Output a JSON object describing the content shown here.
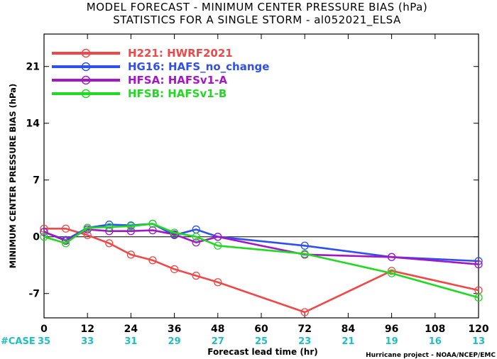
{
  "chart_data": {
    "type": "line",
    "title": "MODEL FORECAST - MINIMUM CENTER PRESSURE BIAS (hPa)",
    "subtitle": "STATISTICS FOR A SINGLE STORM - al052021_ELSA",
    "xlabel": "Forecast lead time (hr)",
    "ylabel": "MINIMUM CENTER PRESSURE BIAS (hPa)",
    "xlim": [
      0,
      120
    ],
    "ylim": [
      -10,
      25
    ],
    "x_ticks": [
      0,
      12,
      24,
      36,
      48,
      60,
      72,
      84,
      96,
      108,
      120
    ],
    "y_ticks": [
      -7,
      0,
      7,
      14,
      21
    ],
    "grid": false,
    "legend_position": "top-left",
    "case_label": "#CASE",
    "case_counts": [
      "35",
      "33",
      "31",
      "29",
      "27",
      "25",
      "23",
      "21",
      "19",
      "16",
      "13"
    ],
    "credit": "Hurricane project - NOAA/NCEP/EMC",
    "series": [
      {
        "name": "H221: HWRF2021",
        "color": "#f04848",
        "x": [
          0,
          6,
          12,
          18,
          24,
          30,
          36,
          42,
          48,
          72,
          96,
          120
        ],
        "y": [
          1.0,
          1.0,
          0.2,
          -0.8,
          -2.2,
          -2.9,
          -4.0,
          -4.8,
          -5.6,
          -9.3,
          -4.2,
          -6.6
        ]
      },
      {
        "name": "HG16: HAFS_no_change",
        "color": "#2f4fee",
        "x": [
          0,
          6,
          12,
          18,
          24,
          30,
          36,
          42,
          48,
          72,
          96,
          120
        ],
        "y": [
          0.6,
          -0.4,
          1.1,
          1.5,
          1.4,
          1.6,
          0.2,
          0.9,
          0.0,
          -1.1,
          -2.5,
          -3.0
        ]
      },
      {
        "name": "HFSA: HAFSv1-A",
        "color": "#a218c6",
        "x": [
          0,
          6,
          12,
          18,
          24,
          30,
          36,
          42,
          48,
          72,
          96,
          120
        ],
        "y": [
          0.6,
          -0.5,
          0.9,
          0.7,
          0.7,
          0.8,
          0.3,
          -0.7,
          0.0,
          -2.2,
          -2.5,
          -3.4
        ]
      },
      {
        "name": "HFSB: HAFSv1-B",
        "color": "#22d922",
        "x": [
          0,
          6,
          12,
          18,
          24,
          30,
          36,
          42,
          48,
          72,
          96,
          120
        ],
        "y": [
          0.0,
          -0.8,
          1.1,
          1.2,
          1.3,
          1.6,
          0.5,
          0.0,
          -1.1,
          -2.1,
          -4.5,
          -7.5
        ]
      }
    ]
  }
}
